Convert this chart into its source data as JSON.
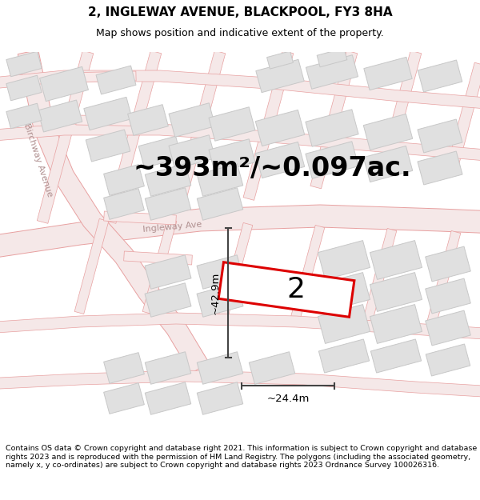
{
  "title": "2, INGLEWAY AVENUE, BLACKPOOL, FY3 8HA",
  "subtitle": "Map shows position and indicative extent of the property.",
  "footer": "Contains OS data © Crown copyright and database right 2021. This information is subject to Crown copyright and database rights 2023 and is reproduced with the permission of HM Land Registry. The polygons (including the associated geometry, namely x, y co-ordinates) are subject to Crown copyright and database rights 2023 Ordnance Survey 100026316.",
  "area_text": "~393m²/~0.097ac.",
  "plot_number": "2",
  "width_label": "~24.4m",
  "height_label": "~42.9m",
  "road_line_color": "#e8a0a0",
  "road_fill_color": "#f5e8e8",
  "building_fill": "#e0e0e0",
  "building_edge": "#c8c8c8",
  "plot_edge_color": "#dd0000",
  "plot_fill_color": "#ffffff",
  "map_bg": "#ffffff",
  "street_label_color": "#b09090",
  "dim_line_color": "#444444",
  "title_fontsize": 11,
  "subtitle_fontsize": 9,
  "footer_fontsize": 6.8,
  "area_fontsize": 24,
  "plot_number_fontsize": 26,
  "label_fontsize": 9.5,
  "street_fontsize": 8
}
